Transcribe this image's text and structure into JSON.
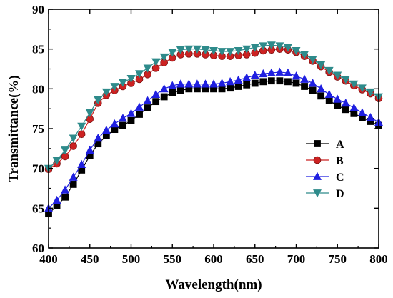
{
  "chart_data": {
    "type": "line",
    "title": "",
    "xlabel": "Wavelength(nm)",
    "ylabel": "Transmittance(%)",
    "xlim": [
      400,
      800
    ],
    "ylim": [
      60,
      90
    ],
    "xticks": [
      400,
      450,
      500,
      550,
      600,
      650,
      700,
      750,
      800
    ],
    "yticks": [
      60,
      65,
      70,
      75,
      80,
      85,
      90
    ],
    "xtick_labels": [
      "400",
      "450",
      "500",
      "550",
      "600",
      "650",
      "700",
      "750",
      "800"
    ],
    "ytick_labels": [
      "60",
      "65",
      "70",
      "75",
      "80",
      "85",
      "90"
    ],
    "grid": false,
    "legend_position": "right",
    "x": [
      400,
      410,
      420,
      430,
      440,
      450,
      460,
      470,
      480,
      490,
      500,
      510,
      520,
      530,
      540,
      550,
      560,
      570,
      580,
      590,
      600,
      610,
      620,
      630,
      640,
      650,
      660,
      670,
      680,
      690,
      700,
      710,
      720,
      730,
      740,
      750,
      760,
      770,
      780,
      790,
      800
    ],
    "series": [
      {
        "name": "A",
        "color": "#000000",
        "marker": "square",
        "values": [
          64.3,
          65.3,
          66.4,
          68.0,
          69.8,
          71.6,
          73.1,
          74.1,
          74.9,
          75.4,
          76.0,
          76.8,
          77.6,
          78.4,
          79.0,
          79.5,
          79.8,
          80.0,
          80.0,
          80.0,
          80.0,
          80.0,
          80.1,
          80.3,
          80.5,
          80.7,
          80.9,
          81.0,
          81.0,
          80.9,
          80.7,
          80.3,
          79.8,
          79.1,
          78.5,
          77.9,
          77.4,
          76.9,
          76.4,
          75.9,
          75.4
        ]
      },
      {
        "name": "B",
        "color": "#cc2222",
        "marker": "circle",
        "values": [
          69.9,
          70.6,
          71.5,
          72.8,
          74.3,
          76.2,
          78.2,
          79.2,
          79.8,
          80.3,
          80.7,
          81.2,
          81.8,
          82.6,
          83.3,
          83.9,
          84.3,
          84.4,
          84.4,
          84.3,
          84.2,
          84.1,
          84.1,
          84.2,
          84.3,
          84.5,
          84.8,
          84.9,
          85.0,
          84.9,
          84.6,
          84.1,
          83.5,
          82.8,
          82.1,
          81.5,
          81.0,
          80.4,
          79.9,
          79.4,
          78.8
        ]
      },
      {
        "name": "C",
        "color": "#1f1fe0",
        "marker": "triangle-up",
        "values": [
          65.0,
          66.0,
          67.3,
          68.9,
          70.5,
          72.3,
          73.8,
          74.8,
          75.6,
          76.3,
          76.9,
          77.7,
          78.5,
          79.3,
          80.0,
          80.4,
          80.6,
          80.6,
          80.6,
          80.6,
          80.6,
          80.7,
          80.9,
          81.1,
          81.4,
          81.7,
          81.9,
          82.0,
          82.1,
          82.0,
          81.6,
          81.2,
          80.7,
          80.0,
          79.3,
          78.7,
          78.2,
          77.6,
          77.0,
          76.4,
          75.8
        ]
      },
      {
        "name": "D",
        "color": "#2e8b8b",
        "marker": "triangle-down",
        "values": [
          70.0,
          71.0,
          72.3,
          73.8,
          75.3,
          77.0,
          78.6,
          79.6,
          80.3,
          80.8,
          81.3,
          81.9,
          82.6,
          83.4,
          84.0,
          84.6,
          84.9,
          85.0,
          85.0,
          84.9,
          84.8,
          84.7,
          84.7,
          84.8,
          85.0,
          85.2,
          85.4,
          85.5,
          85.4,
          85.2,
          84.8,
          84.3,
          83.7,
          83.0,
          82.3,
          81.7,
          81.2,
          80.6,
          80.1,
          79.6,
          79.0
        ]
      }
    ]
  }
}
